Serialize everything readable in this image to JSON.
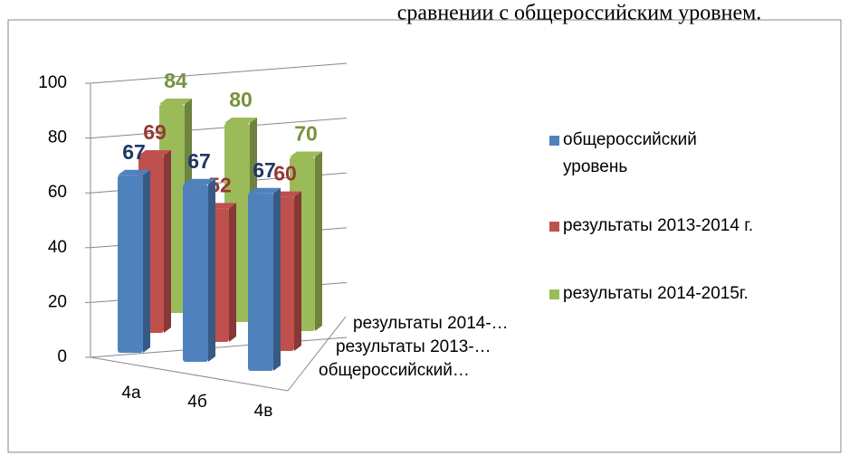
{
  "caption": "сравнении с общероссийским уровнем.",
  "chart_data": {
    "type": "bar",
    "categories": [
      "4а",
      "4б",
      "4в"
    ],
    "depth_categories": [
      "общероссийский…",
      "результаты 2013-…",
      "результаты 2014-…"
    ],
    "series": [
      {
        "name": "общероссийский уровень",
        "color": "#4f81bd",
        "label_color": "#1f3864",
        "values": [
          67,
          67,
          67
        ]
      },
      {
        "name": "результаты 2013-2014 г.",
        "color": "#c0504d",
        "label_color": "#953735",
        "values": [
          69,
          52,
          60
        ]
      },
      {
        "name": "результаты 2014-2015г.",
        "color": "#9bbb59",
        "label_color": "#77933c",
        "values": [
          84,
          80,
          70
        ]
      }
    ],
    "ylim": [
      0,
      100
    ],
    "yticks": [
      0,
      20,
      40,
      60,
      80,
      100
    ],
    "grid": true,
    "legend": "right"
  }
}
